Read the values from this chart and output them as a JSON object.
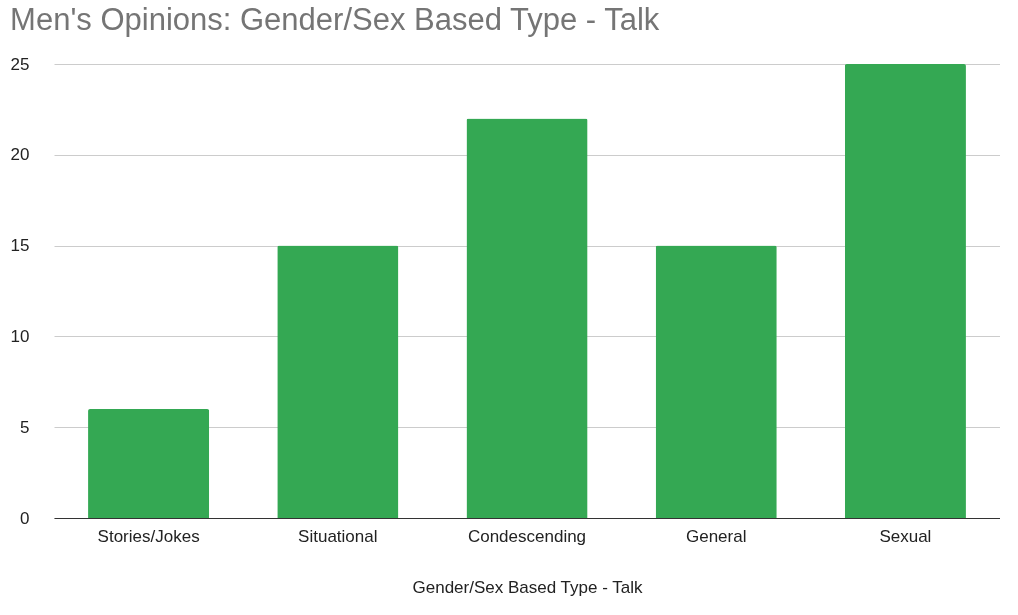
{
  "chart_data": {
    "type": "bar",
    "title": "Men's Opinions: Gender/Sex Based Type - Talk",
    "xlabel": "Gender/Sex Based Type - Talk",
    "categories": [
      "Stories/Jokes",
      "Situational",
      "Condescending",
      "General",
      "Sexual"
    ],
    "values": [
      6,
      15,
      22,
      15,
      25
    ],
    "color": "#34a853",
    "ylim": [
      0,
      25
    ],
    "yticks": [
      0,
      5,
      10,
      15,
      20,
      25
    ],
    "grid": "y"
  }
}
